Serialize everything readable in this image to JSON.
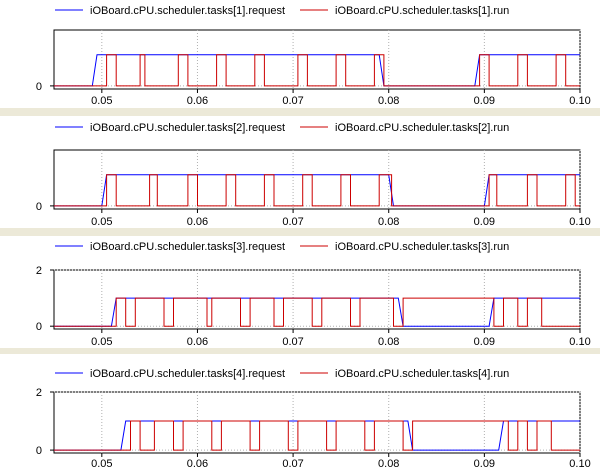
{
  "chart_data": [
    {
      "type": "line",
      "step": true,
      "xlim": [
        0.045,
        0.1
      ],
      "x_ticks": [
        "0.05",
        "0.06",
        "0.07",
        "0.08",
        "0.09",
        "0.10"
      ],
      "x_tick_values": [
        0.05,
        0.06,
        0.07,
        0.08,
        0.09,
        0.1
      ],
      "y_ticks": [
        "0"
      ],
      "y_tick_values": [
        0
      ],
      "ylim": [
        -0.1,
        1.8
      ],
      "grid": true,
      "legend_position": "top",
      "series": [
        {
          "name": "iOBoard.cPU.scheduler.tasks[1].request",
          "color": "#0000ff",
          "x": [
            0.045,
            0.049,
            0.0495,
            0.079,
            0.0795,
            0.089,
            0.0895,
            0.1
          ],
          "y": [
            0,
            0,
            1,
            1,
            0,
            0,
            1,
            1
          ]
        },
        {
          "name": "iOBoard.cPU.scheduler.tasks[1].run",
          "color": "#cc0000",
          "x": [
            0.045,
            0.0505,
            0.0505,
            0.0515,
            0.0515,
            0.054,
            0.054,
            0.0545,
            0.0545,
            0.058,
            0.058,
            0.059,
            0.059,
            0.062,
            0.062,
            0.063,
            0.063,
            0.066,
            0.066,
            0.067,
            0.067,
            0.0705,
            0.0705,
            0.0715,
            0.0715,
            0.0745,
            0.0745,
            0.0755,
            0.0755,
            0.0785,
            0.0785,
            0.0795,
            0.0795,
            0.0895,
            0.0895,
            0.0905,
            0.0905,
            0.0935,
            0.0935,
            0.0945,
            0.0945,
            0.0975,
            0.0975,
            0.0985,
            0.0985,
            0.1
          ],
          "y": [
            0,
            0,
            1,
            1,
            0,
            0,
            1,
            1,
            0,
            0,
            1,
            1,
            0,
            0,
            1,
            1,
            0,
            0,
            1,
            1,
            0,
            0,
            1,
            1,
            0,
            0,
            1,
            1,
            0,
            0,
            1,
            1,
            0,
            0,
            1,
            1,
            0,
            0,
            1,
            1,
            0,
            0,
            1,
            1,
            0,
            0
          ]
        }
      ]
    },
    {
      "type": "line",
      "step": true,
      "xlim": [
        0.045,
        0.1
      ],
      "x_ticks": [
        "0.05",
        "0.06",
        "0.07",
        "0.08",
        "0.09",
        "0.10"
      ],
      "x_tick_values": [
        0.05,
        0.06,
        0.07,
        0.08,
        0.09,
        0.1
      ],
      "y_ticks": [
        "0"
      ],
      "y_tick_values": [
        0
      ],
      "ylim": [
        -0.1,
        1.8
      ],
      "grid": true,
      "legend_position": "top",
      "series": [
        {
          "name": "iOBoard.cPU.scheduler.tasks[2].request",
          "color": "#0000ff",
          "x": [
            0.045,
            0.05,
            0.0505,
            0.08,
            0.0805,
            0.09,
            0.0905,
            0.1
          ],
          "y": [
            0,
            0,
            1,
            1,
            0,
            0,
            1,
            1
          ]
        },
        {
          "name": "iOBoard.cPU.scheduler.tasks[2].run",
          "color": "#cc0000",
          "x": [
            0.045,
            0.0505,
            0.0505,
            0.0515,
            0.0515,
            0.055,
            0.055,
            0.0558,
            0.0558,
            0.059,
            0.059,
            0.06,
            0.06,
            0.063,
            0.063,
            0.064,
            0.064,
            0.067,
            0.067,
            0.068,
            0.068,
            0.071,
            0.071,
            0.072,
            0.072,
            0.075,
            0.075,
            0.076,
            0.076,
            0.079,
            0.079,
            0.0803,
            0.0803,
            0.0905,
            0.0905,
            0.0913,
            0.0913,
            0.0945,
            0.0945,
            0.0955,
            0.0955,
            0.0985,
            0.0985,
            0.0995,
            0.0995,
            0.1
          ],
          "y": [
            0,
            0,
            1,
            1,
            0,
            0,
            1,
            1,
            0,
            0,
            1,
            1,
            0,
            0,
            1,
            1,
            0,
            0,
            1,
            1,
            0,
            0,
            1,
            1,
            0,
            0,
            1,
            1,
            0,
            0,
            1,
            1,
            0,
            0,
            1,
            1,
            0,
            0,
            1,
            1,
            0,
            0,
            1,
            1,
            0,
            0
          ]
        }
      ]
    },
    {
      "type": "line",
      "step": true,
      "xlim": [
        0.045,
        0.1
      ],
      "x_ticks": [
        "0.05",
        "0.06",
        "0.07",
        "0.08",
        "0.09",
        "0.10"
      ],
      "x_tick_values": [
        0.05,
        0.06,
        0.07,
        0.08,
        0.09,
        0.1
      ],
      "y_ticks": [
        "2",
        "0"
      ],
      "y_tick_values": [
        2,
        0
      ],
      "ylim": [
        -0.1,
        2
      ],
      "grid": true,
      "legend_position": "top",
      "series": [
        {
          "name": "iOBoard.cPU.scheduler.tasks[3].request",
          "color": "#0000ff",
          "x": [
            0.045,
            0.051,
            0.0515,
            0.081,
            0.0815,
            0.0905,
            0.091,
            0.1
          ],
          "y": [
            0,
            0,
            1,
            1,
            0,
            0,
            1,
            1
          ]
        },
        {
          "name": "iOBoard.cPU.scheduler.tasks[3].run",
          "color": "#cc0000",
          "x": [
            0.045,
            0.0515,
            0.0515,
            0.0525,
            0.0525,
            0.0535,
            0.0535,
            0.0565,
            0.0565,
            0.0575,
            0.0575,
            0.061,
            0.061,
            0.0615,
            0.0615,
            0.0645,
            0.0645,
            0.0655,
            0.0655,
            0.068,
            0.068,
            0.069,
            0.069,
            0.072,
            0.072,
            0.073,
            0.073,
            0.076,
            0.076,
            0.077,
            0.077,
            0.0805,
            0.0805,
            0.0815,
            0.0815,
            0.091,
            0.091,
            0.092,
            0.092,
            0.0935,
            0.0935,
            0.0945,
            0.0945,
            0.096,
            0.096,
            0.097,
            0.097,
            0.1
          ],
          "y": [
            0,
            0,
            1,
            1,
            0,
            0,
            1,
            1,
            0,
            0,
            1,
            1,
            0,
            0,
            1,
            1,
            0,
            0,
            1,
            1,
            0,
            0,
            1,
            1,
            0,
            0,
            1,
            1,
            0,
            0,
            1,
            1,
            0,
            0,
            1,
            1,
            0,
            0,
            1,
            1,
            0,
            0,
            1,
            1,
            0,
            0,
            0,
            0
          ]
        }
      ]
    },
    {
      "type": "line",
      "step": true,
      "xlim": [
        0.045,
        0.1
      ],
      "x_ticks": [
        "0.05",
        "0.06",
        "0.07",
        "0.08",
        "0.09",
        "0.10"
      ],
      "x_tick_values": [
        0.05,
        0.06,
        0.07,
        0.08,
        0.09,
        0.1
      ],
      "y_ticks": [
        "2",
        "0"
      ],
      "y_tick_values": [
        2,
        0
      ],
      "ylim": [
        -0.1,
        2
      ],
      "grid": true,
      "legend_position": "top",
      "series": [
        {
          "name": "iOBoard.cPU.scheduler.tasks[4].request",
          "color": "#0000ff",
          "x": [
            0.045,
            0.052,
            0.0525,
            0.082,
            0.0825,
            0.0915,
            0.092,
            0.1
          ],
          "y": [
            0,
            0,
            1,
            1,
            0,
            0,
            1,
            1
          ]
        },
        {
          "name": "iOBoard.cPU.scheduler.tasks[4].run",
          "color": "#cc0000",
          "x": [
            0.045,
            0.053,
            0.053,
            0.054,
            0.054,
            0.0555,
            0.0555,
            0.0575,
            0.0575,
            0.0585,
            0.0585,
            0.0615,
            0.0615,
            0.0625,
            0.0625,
            0.0655,
            0.0655,
            0.0665,
            0.0665,
            0.0695,
            0.0695,
            0.0705,
            0.0705,
            0.0735,
            0.0735,
            0.0745,
            0.0745,
            0.0775,
            0.0775,
            0.0785,
            0.0785,
            0.0815,
            0.0815,
            0.0825,
            0.0825,
            0.0925,
            0.0925,
            0.0935,
            0.0935,
            0.0945,
            0.0945,
            0.0955,
            0.0955,
            0.097,
            0.097,
            0.098,
            0.098,
            0.1
          ],
          "y": [
            0,
            0,
            1,
            1,
            0,
            0,
            1,
            1,
            0,
            0,
            1,
            1,
            0,
            0,
            1,
            1,
            0,
            0,
            1,
            1,
            0,
            0,
            1,
            1,
            0,
            0,
            1,
            1,
            0,
            0,
            1,
            1,
            0,
            0,
            1,
            1,
            0,
            0,
            1,
            1,
            0,
            0,
            1,
            1,
            0,
            0,
            0,
            0
          ]
        }
      ]
    }
  ]
}
